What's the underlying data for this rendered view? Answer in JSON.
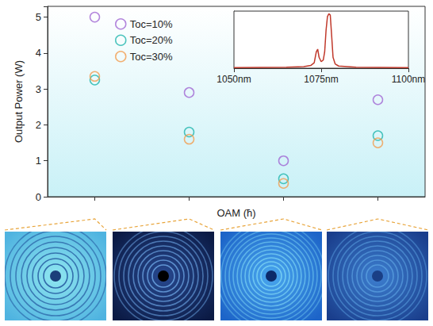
{
  "chart_data": [
    {
      "type": "scatter",
      "x_label": "OAM (ħ)",
      "y_label": "Output Power (W)",
      "categories": [
        null,
        null,
        null,
        null
      ],
      "series": [
        {
          "name": "Toc=10%",
          "color": "#a066d3",
          "marker": "open circle",
          "values": [
            5.0,
            2.9,
            1.0,
            2.7
          ]
        },
        {
          "name": "Toc=20%",
          "color": "#1fb5ad",
          "marker": "open circle",
          "values": [
            3.25,
            1.8,
            0.5,
            1.7
          ]
        },
        {
          "name": "Toc=30%",
          "color": "#f39c4e",
          "marker": "open circle",
          "values": [
            3.35,
            1.6,
            0.37,
            1.5
          ]
        }
      ],
      "ylim": [
        0,
        5.3
      ],
      "yticks": [
        0,
        1,
        2,
        3,
        4,
        5
      ],
      "grid": false,
      "legend": "top-left",
      "tick_labels": "y"
    },
    {
      "type": "line",
      "x": [
        1050,
        1065,
        1070,
        1072,
        1073,
        1073.6,
        1074,
        1074.4,
        1075,
        1075.6,
        1076,
        1076.4,
        1076.8,
        1077.2,
        1077.6,
        1078,
        1078.4,
        1079,
        1080,
        1085,
        1100
      ],
      "values": [
        0.01,
        0.02,
        0.03,
        0.05,
        0.1,
        0.3,
        0.35,
        0.2,
        0.12,
        0.15,
        0.3,
        0.7,
        0.95,
        1.0,
        0.98,
        0.6,
        0.2,
        0.08,
        0.04,
        0.02,
        0.01
      ],
      "color": "#c0392b",
      "xlim": [
        1050,
        1100
      ],
      "xticks": [
        {
          "value": 1050,
          "label": "1050nm"
        },
        {
          "value": 1075,
          "label": "1075nm"
        },
        {
          "value": 1100,
          "label": "1100nm"
        }
      ],
      "ylim": [
        0,
        1.05
      ],
      "yticks": [],
      "grid": false,
      "tick_labels": "x"
    }
  ]
}
